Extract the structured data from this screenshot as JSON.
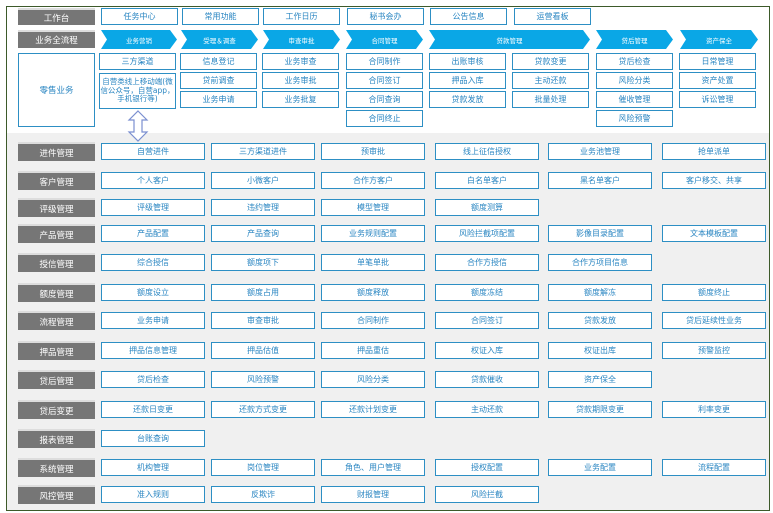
{
  "workbench": {
    "label": "工作台",
    "items": [
      "任务中心",
      "常用功能",
      "工作日历",
      "秘书会办",
      "公告信息",
      "运营看板"
    ]
  },
  "process": {
    "label": "业务全流程",
    "stages": [
      "业务营销",
      "受理＆调查",
      "审查审批",
      "合同管理",
      "贷款管理",
      "贷后管理",
      "资产保全"
    ]
  },
  "retail": {
    "label": "零售业务",
    "columns": [
      [
        "三方渠道",
        "自营类线上移动端(微信公众号，自营app，手机银行等)"
      ],
      [
        "信息登记",
        "贷前调查",
        "业务申请"
      ],
      [
        "业务审查",
        "业务审批",
        "业务批复"
      ],
      [
        "合同制作",
        "合同签订",
        "合同查询",
        "合同终止"
      ],
      [
        "出账审核",
        "押品入库",
        "贷款发放"
      ],
      [
        "贷款变更",
        "主动还款",
        "批量处理"
      ],
      [
        "贷后检查",
        "风险分类",
        "催收管理",
        "风险预警"
      ],
      [
        "日常管理",
        "资产处置",
        "诉讼管理"
      ]
    ]
  },
  "modules": [
    {
      "label": "进件管理",
      "items": [
        "自营进件",
        "三方渠道进件",
        "预审批",
        "线上征信授权",
        "业务池管理",
        "抢单派单"
      ]
    },
    {
      "label": "客户管理",
      "items": [
        "个人客户",
        "小微客户",
        "合作方客户",
        "白名单客户",
        "黑名单客户",
        "客户移交、共享"
      ]
    },
    {
      "label": "评级管理",
      "items": [
        "评级管理",
        "违约管理",
        "模型管理",
        "额度测算"
      ]
    },
    {
      "label": "产品管理",
      "items": [
        "产品配置",
        "产品查询",
        "业务规则配置",
        "风险拦截项配置",
        "影像目录配置",
        "文本模板配置"
      ]
    },
    {
      "label": "授信管理",
      "items": [
        "综合授信",
        "额度项下",
        "单笔单批",
        "合作方授信",
        "合作方项目信息"
      ]
    },
    {
      "label": "额度管理",
      "items": [
        "额度设立",
        "额度占用",
        "额度释放",
        "额度冻结",
        "额度解冻",
        "额度终止"
      ]
    },
    {
      "label": "流程管理",
      "items": [
        "业务申请",
        "审查审批",
        "合同制作",
        "合同签订",
        "贷款发放",
        "贷后延续性业务"
      ]
    },
    {
      "label": "押品管理",
      "items": [
        "押品信息管理",
        "押品估值",
        "押品重估",
        "权证入库",
        "权证出库",
        "预警监控"
      ]
    },
    {
      "label": "贷后管理",
      "items": [
        "贷后检查",
        "风险预警",
        "风险分类",
        "贷款催收",
        "资产保全"
      ]
    },
    {
      "label": "贷后变更",
      "items": [
        "还款日变更",
        "还款方式变更",
        "还款计划变更",
        "主动还款",
        "贷款期限变更",
        "利率变更"
      ]
    },
    {
      "label": "报表管理",
      "items": [
        "台账查询"
      ]
    },
    {
      "label": "系统管理",
      "items": [
        "机构管理",
        "岗位管理",
        "角色、用户管理",
        "授权配置",
        "业务配置",
        "流程配置"
      ]
    },
    {
      "label": "风控管理",
      "items": [
        "准入规则",
        "反欺诈",
        "财报管理",
        "风险拦截"
      ]
    }
  ],
  "colors": {
    "accent": "#0aa7e6",
    "border": "#2d8fc4",
    "label_bg": "#767676"
  }
}
